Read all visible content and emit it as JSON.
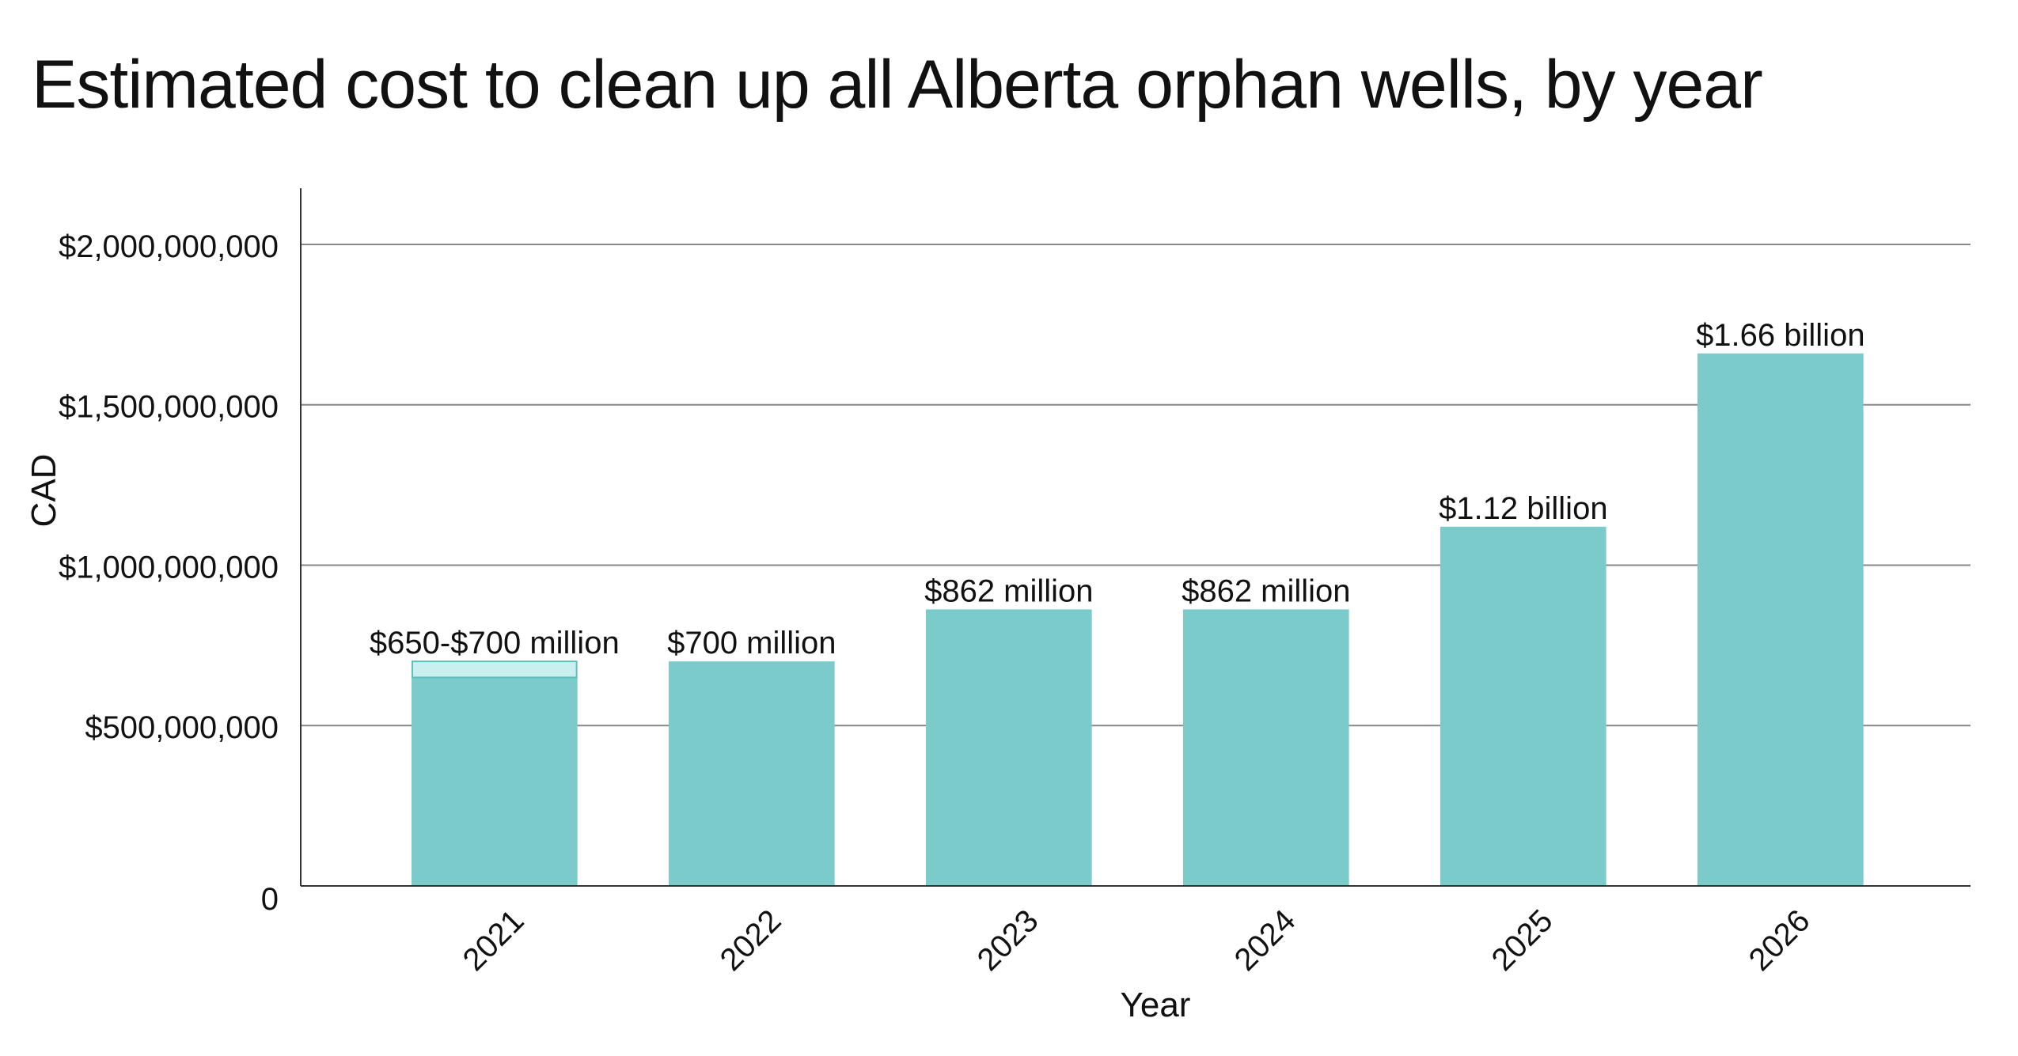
{
  "chart_data": {
    "type": "bar",
    "title": "Estimated cost to clean up all Alberta orphan wells, by year",
    "xlabel": "Year",
    "ylabel": "CAD",
    "categories": [
      "2021",
      "2022",
      "2023",
      "2024",
      "2025",
      "2026"
    ],
    "series": [
      {
        "values": [
          650000000,
          700000000,
          862000000,
          862000000,
          1120000000,
          1660000000
        ]
      }
    ],
    "range_upper": [
      700000000,
      null,
      null,
      null,
      null,
      null
    ],
    "data_labels": [
      "$650-$700 million",
      "$700 million",
      "$862 million",
      "$862 million",
      "$1.12 billion",
      "$1.66 billion"
    ],
    "ylim": [
      0,
      2170000000
    ],
    "yticks": [
      0,
      500000000,
      1000000000,
      1500000000,
      2000000000
    ],
    "ytick_labels": [
      "0",
      "$500,000,000",
      "$1,000,000,000",
      "$1,500,000,000",
      "$2,000,000,000"
    ],
    "grid": true,
    "colors": {
      "bar": "#7ccbcb",
      "range_fill": "#c9efef",
      "range_stroke": "#5fc0c0",
      "grid": "#888888",
      "axis": "#333333"
    }
  }
}
